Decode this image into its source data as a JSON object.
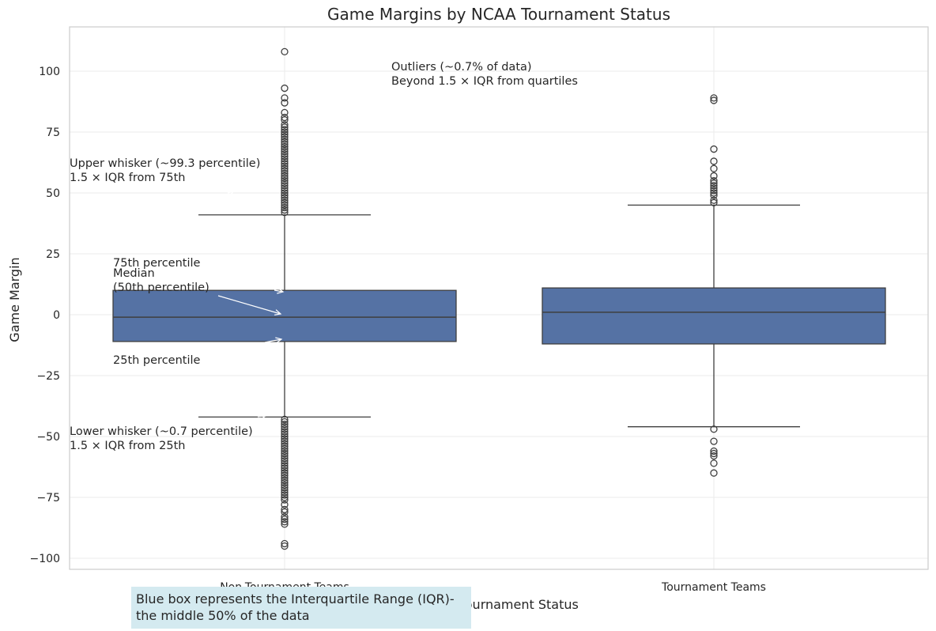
{
  "chart_data": {
    "type": "box",
    "title": "Game Margins by NCAA Tournament Status",
    "xlabel": "NCAA Tournament Status",
    "ylabel": "Game Margin",
    "ylim": [
      -105,
      118
    ],
    "yticks": [
      100,
      75,
      50,
      25,
      0,
      -25,
      -50,
      -75,
      -100
    ],
    "ytick_labels": [
      "100",
      "75",
      "50",
      "25",
      "0",
      "−25",
      "−50",
      "−75",
      "−100"
    ],
    "grid": true,
    "box_color": "#5572a4",
    "categories": [
      "Non-Tournament Teams",
      "Tournament Teams"
    ],
    "boxes": [
      {
        "category": "Non-Tournament Teams",
        "q1": -11,
        "median": -1,
        "q3": 10,
        "whisker_low": -42,
        "whisker_high": 41,
        "outliers_high": [
          42,
          43,
          44,
          45,
          46,
          47,
          48,
          49,
          50,
          51,
          52,
          53,
          54,
          55,
          56,
          57,
          58,
          59,
          60,
          61,
          62,
          63,
          64,
          65,
          66,
          67,
          68,
          69,
          70,
          71,
          72,
          73,
          74,
          75,
          76,
          77,
          78,
          80,
          81,
          83,
          87,
          89,
          93,
          108
        ],
        "outliers_low": [
          -43,
          -44,
          -45,
          -46,
          -47,
          -48,
          -49,
          -50,
          -51,
          -52,
          -53,
          -54,
          -55,
          -56,
          -57,
          -58,
          -59,
          -60,
          -61,
          -62,
          -63,
          -64,
          -65,
          -66,
          -67,
          -68,
          -69,
          -70,
          -71,
          -72,
          -73,
          -74,
          -75,
          -76,
          -78,
          -80,
          -81,
          -83,
          -84,
          -85,
          -86,
          -94,
          -95
        ]
      },
      {
        "category": "Tournament Teams",
        "q1": -12,
        "median": 1,
        "q3": 11,
        "whisker_low": -46,
        "whisker_high": 45,
        "outliers_high": [
          46,
          47,
          49,
          50,
          51,
          52,
          53,
          54,
          55,
          57,
          60,
          63,
          68,
          88,
          89
        ],
        "outliers_low": [
          -47,
          -52,
          -56,
          -57,
          -58,
          -61,
          -65
        ]
      }
    ],
    "annotations": [
      {
        "lines": [
          "Outliers (~0.7% of data)",
          "Beyond 1.5 × IQR from quartiles"
        ]
      },
      {
        "lines": [
          "Upper whisker (~99.3 percentile)",
          "1.5 × IQR from 75th"
        ]
      },
      {
        "lines": [
          "75th percentile"
        ]
      },
      {
        "lines": [
          "Median",
          "(50th percentile)"
        ]
      },
      {
        "lines": [
          "25th percentile"
        ]
      },
      {
        "lines": [
          "Lower whisker (~0.7 percentile)",
          "1.5 × IQR from 25th"
        ]
      }
    ],
    "note": {
      "lines": [
        "Blue box represents the Interquartile Range (IQR)-",
        "the middle 50% of the data"
      ],
      "background": "#d4eaf0"
    }
  }
}
